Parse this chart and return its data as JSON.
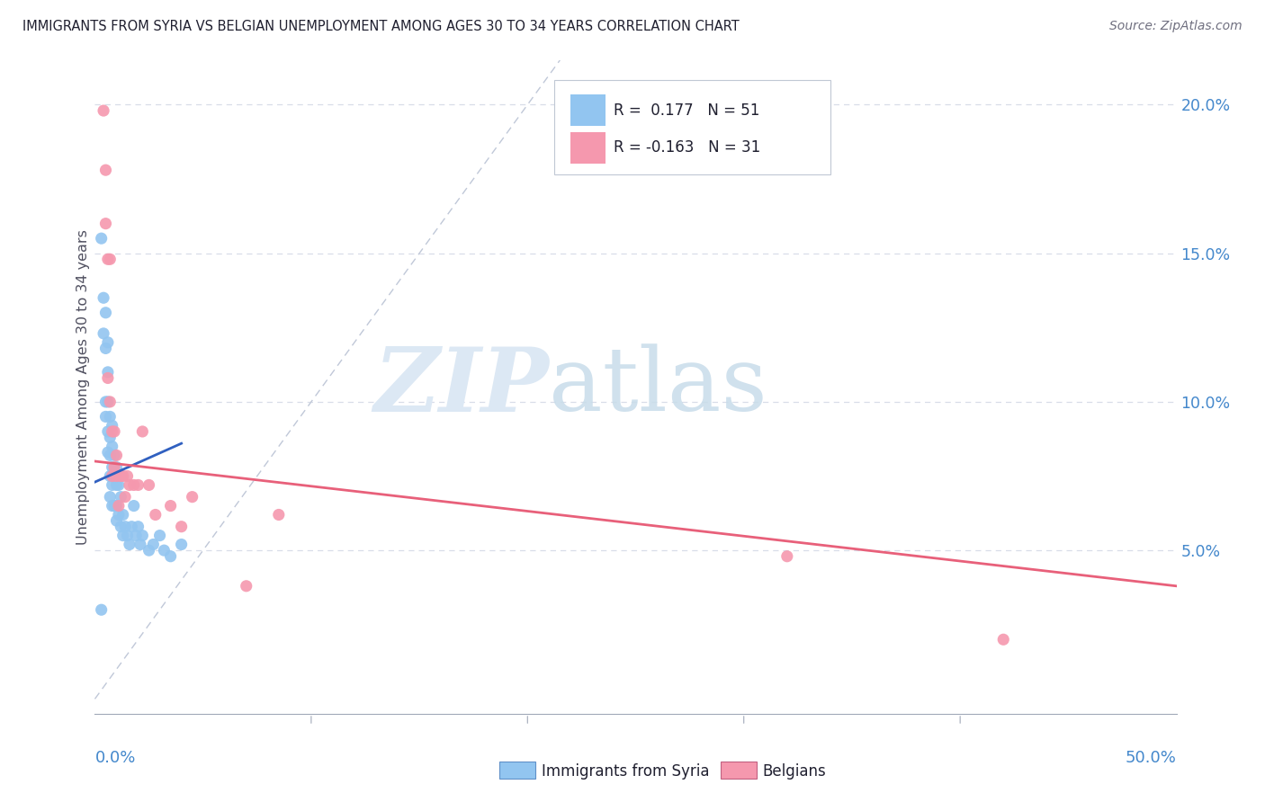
{
  "title": "IMMIGRANTS FROM SYRIA VS BELGIAN UNEMPLOYMENT AMONG AGES 30 TO 34 YEARS CORRELATION CHART",
  "source": "Source: ZipAtlas.com",
  "ylabel": "Unemployment Among Ages 30 to 34 years",
  "ytick_labels": [
    "5.0%",
    "10.0%",
    "15.0%",
    "20.0%"
  ],
  "ytick_values": [
    0.05,
    0.1,
    0.15,
    0.2
  ],
  "xlim": [
    0.0,
    0.5
  ],
  "ylim": [
    -0.005,
    0.215
  ],
  "legend_label1": "Immigrants from Syria",
  "legend_label2": "Belgians",
  "syria_color": "#92c5f0",
  "belgians_color": "#f598ae",
  "syria_line_color": "#3060c0",
  "belgians_line_color": "#e8607a",
  "ref_line_color": "#c0c8d8",
  "grid_color": "#d8dde8",
  "syria_x": [
    0.003,
    0.004,
    0.004,
    0.005,
    0.005,
    0.005,
    0.005,
    0.006,
    0.006,
    0.006,
    0.006,
    0.006,
    0.007,
    0.007,
    0.007,
    0.007,
    0.007,
    0.008,
    0.008,
    0.008,
    0.008,
    0.008,
    0.009,
    0.009,
    0.009,
    0.01,
    0.01,
    0.01,
    0.01,
    0.011,
    0.011,
    0.012,
    0.012,
    0.013,
    0.013,
    0.014,
    0.015,
    0.016,
    0.017,
    0.018,
    0.019,
    0.02,
    0.021,
    0.022,
    0.025,
    0.027,
    0.03,
    0.032,
    0.035,
    0.04,
    0.003
  ],
  "syria_y": [
    0.155,
    0.135,
    0.123,
    0.13,
    0.118,
    0.1,
    0.095,
    0.12,
    0.11,
    0.1,
    0.09,
    0.083,
    0.095,
    0.088,
    0.082,
    0.075,
    0.068,
    0.092,
    0.085,
    0.078,
    0.072,
    0.065,
    0.082,
    0.075,
    0.065,
    0.078,
    0.072,
    0.065,
    0.06,
    0.072,
    0.062,
    0.068,
    0.058,
    0.062,
    0.055,
    0.058,
    0.055,
    0.052,
    0.058,
    0.065,
    0.055,
    0.058,
    0.052,
    0.055,
    0.05,
    0.052,
    0.055,
    0.05,
    0.048,
    0.052,
    0.03
  ],
  "belgians_x": [
    0.004,
    0.005,
    0.005,
    0.006,
    0.006,
    0.007,
    0.007,
    0.008,
    0.008,
    0.009,
    0.009,
    0.01,
    0.01,
    0.011,
    0.012,
    0.013,
    0.014,
    0.015,
    0.016,
    0.018,
    0.02,
    0.022,
    0.025,
    0.028,
    0.035,
    0.04,
    0.045,
    0.07,
    0.085,
    0.32,
    0.42
  ],
  "belgians_y": [
    0.198,
    0.178,
    0.16,
    0.148,
    0.108,
    0.148,
    0.1,
    0.09,
    0.075,
    0.09,
    0.078,
    0.082,
    0.075,
    0.065,
    0.075,
    0.075,
    0.068,
    0.075,
    0.072,
    0.072,
    0.072,
    0.09,
    0.072,
    0.062,
    0.065,
    0.058,
    0.068,
    0.038,
    0.062,
    0.048,
    0.02
  ],
  "syria_trend": [
    0.0,
    0.04,
    0.073,
    0.085
  ],
  "belgians_trend_x": [
    0.0,
    0.5
  ],
  "belgians_trend_y": [
    0.08,
    0.038
  ],
  "ref_line_x": [
    0.0,
    0.215
  ],
  "ref_line_y": [
    0.0,
    0.215
  ]
}
